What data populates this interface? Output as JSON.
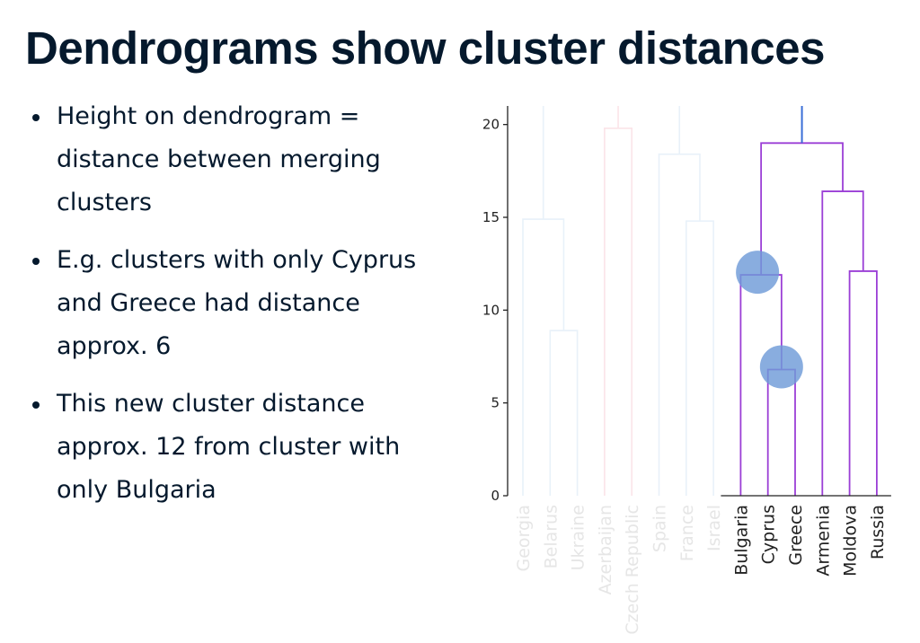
{
  "slide": {
    "title": "Dendrograms show cluster distances",
    "bullets": [
      "Height on dendrogram = distance between merging clusters",
      "E.g. clusters with only Cyprus and Greece had distance approx. 6",
      "This new cluster distance approx. 12 from cluster with only Bulgaria"
    ]
  },
  "chart_data": {
    "type": "dendrogram",
    "ylim": [
      0,
      21
    ],
    "yticks": [
      0,
      5,
      10,
      15,
      20
    ],
    "leaves": [
      "Georgia",
      "Belarus",
      "Ukraine",
      "Azerbaijan",
      "Czech Republic",
      "Spain",
      "France",
      "Israel",
      "Bulgaria",
      "Cyprus",
      "Greece",
      "Armenia",
      "Moldova",
      "Russia"
    ],
    "faded_leaves": [
      "Georgia",
      "Belarus",
      "Ukraine",
      "Azerbaijan",
      "Czech Republic",
      "Spain",
      "France",
      "Israel"
    ],
    "highlighted_leaves": [
      "Bulgaria",
      "Cyprus",
      "Greece",
      "Armenia",
      "Moldova",
      "Russia"
    ],
    "colors": {
      "faded_blue": "#e8f1f9",
      "faded_pink": "#fbe4e8",
      "faded_label": "#e6e6e6",
      "cluster": "#9b3fd6",
      "trunk": "#3a6fd8",
      "marker": "#6f9bd8",
      "label": "#222222",
      "axis": "#222222"
    },
    "merges": [
      {
        "left": "Cyprus",
        "right": "Greece",
        "height": 6.8,
        "highlighted": true,
        "marked": true
      },
      {
        "left": "Bulgaria",
        "right": "Cyprus+Greece",
        "height": 11.9,
        "highlighted": true,
        "marked": true
      },
      {
        "left": "Moldova",
        "right": "Russia",
        "height": 12.1,
        "highlighted": true
      },
      {
        "left": "Armenia",
        "right": "Moldova+Russia",
        "height": 16.4,
        "highlighted": true
      },
      {
        "left": "Bulgaria+Cyprus+Greece",
        "right": "Armenia+Moldova+Russia",
        "height": 19.0,
        "highlighted": true
      },
      {
        "left": "Belarus",
        "right": "Ukraine",
        "height": 8.9,
        "highlighted": false
      },
      {
        "left": "Georgia",
        "right": "Belarus+Ukraine",
        "height": 14.9,
        "highlighted": false
      },
      {
        "left": "Azerbaijan",
        "right": "Czech Republic",
        "height": 19.8,
        "highlighted": false
      },
      {
        "left": "France",
        "right": "Israel",
        "height": 14.8,
        "highlighted": false
      },
      {
        "left": "Spain",
        "right": "France+Israel",
        "height": 18.4,
        "highlighted": false
      }
    ]
  }
}
